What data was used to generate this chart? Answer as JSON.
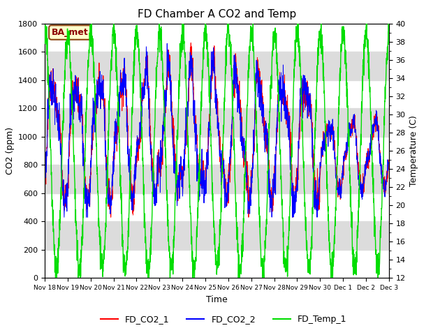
{
  "title": "FD Chamber A CO2 and Temp",
  "xlabel": "Time",
  "ylabel_left": "CO2 (ppm)",
  "ylabel_right": "Temperature (C)",
  "ylim_left": [
    0,
    1800
  ],
  "ylim_right": [
    12,
    40
  ],
  "yticks_left": [
    0,
    200,
    400,
    600,
    800,
    1000,
    1200,
    1400,
    1600,
    1800
  ],
  "yticks_right": [
    12,
    14,
    16,
    18,
    20,
    22,
    24,
    26,
    28,
    30,
    32,
    34,
    36,
    38,
    40
  ],
  "xtick_labels": [
    "Nov 18",
    "Nov 19",
    "Nov 20",
    "Nov 21",
    "Nov 22",
    "Nov 23",
    "Nov 24",
    "Nov 25",
    "Nov 26",
    "Nov 27",
    "Nov 28",
    "Nov 29",
    "Nov 30",
    "Dec 1",
    "Dec 2",
    "Dec 3"
  ],
  "color_co2_1": "#FF0000",
  "color_co2_2": "#0000FF",
  "color_temp": "#00DD00",
  "legend_labels": [
    "FD_CO2_1",
    "FD_CO2_2",
    "FD_Temp_1"
  ],
  "annotation_text": "BA_met",
  "annotation_bg": "#FFFFCC",
  "annotation_border": "#8B4513",
  "bg_band_color": "#DCDCDC",
  "num_days": 15
}
